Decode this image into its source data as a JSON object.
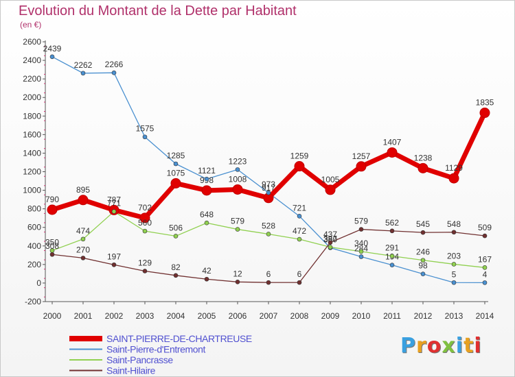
{
  "header": {
    "title": "Evolution du Montant de la Dette par Habitant",
    "subtitle": "(en €)"
  },
  "logo": {
    "text": "Proxiti",
    "colors": [
      "#3aa0e0",
      "#e8a020",
      "#e03030",
      "#80c040"
    ]
  },
  "colors": {
    "title": "#b0306a",
    "axis": "#555555",
    "grid_tick": "#d03070",
    "legend_text": "#5050d0"
  },
  "chart_data": {
    "type": "line",
    "title": "Evolution du Montant de la Dette par Habitant",
    "subtitle": "(en €)",
    "xlabel": "",
    "ylabel": "",
    "x": [
      "2000",
      "2001",
      "2002",
      "2003",
      "2004",
      "2005",
      "2006",
      "2007",
      "2008",
      "2009",
      "2010",
      "2011",
      "2012",
      "2013",
      "2014"
    ],
    "ylim": [
      -200,
      2600
    ],
    "yticks": [
      -200,
      0,
      200,
      400,
      600,
      800,
      1000,
      1200,
      1400,
      1600,
      1800,
      2000,
      2200,
      2400,
      2600
    ],
    "legend_position": "bottom-left",
    "series": [
      {
        "name": "SAINT-PIERRE-DE-CHARTREUSE",
        "color": "#e00000",
        "marker_color": "#e00000",
        "width": 7,
        "values": [
          790,
          895,
          787,
          702,
          1075,
          998,
          1008,
          917,
          1259,
          1005,
          1257,
          1407,
          1238,
          1129,
          1835
        ]
      },
      {
        "name": "Saint-Pierre-d'Entremont",
        "color": "#4a90d0",
        "marker_color": "#4a90d0",
        "width": 1.3,
        "values": [
          2439,
          2262,
          2266,
          1575,
          1285,
          1121,
          1223,
          973,
          721,
          380,
          284,
          194,
          98,
          5,
          4
        ]
      },
      {
        "name": "Saint-Pancrasse",
        "color": "#90d050",
        "marker_color": "#90d050",
        "width": 1.3,
        "values": [
          350,
          474,
          771,
          560,
          506,
          648,
          579,
          528,
          472,
          387,
          340,
          291,
          246,
          203,
          167
        ]
      },
      {
        "name": "Saint-Hilaire",
        "color": "#703030",
        "marker_color": "#703030",
        "width": 1.3,
        "values": [
          308,
          270,
          197,
          129,
          82,
          42,
          12,
          6,
          6,
          437,
          579,
          562,
          545,
          548,
          509
        ]
      }
    ]
  }
}
